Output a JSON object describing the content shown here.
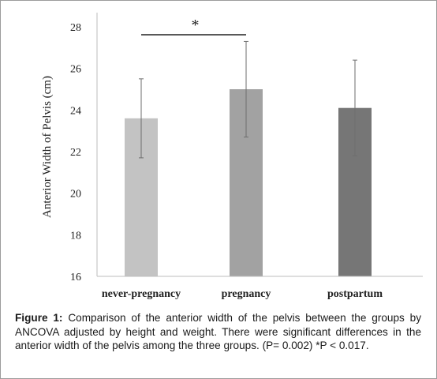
{
  "chart_data": {
    "type": "bar",
    "categories": [
      "never-pregnancy",
      "pregnancy",
      "postpartum"
    ],
    "values": [
      23.6,
      25.0,
      24.1
    ],
    "error_upper": [
      25.5,
      27.3,
      26.4
    ],
    "error_lower": [
      21.7,
      22.7,
      21.8
    ],
    "bar_colors": [
      "#c3c3c3",
      "#a2a2a2",
      "#767676"
    ],
    "ylabel": "Anterior Width of Pelvis (cm)",
    "xlabel": "",
    "ylim": [
      16,
      28
    ],
    "yticks": [
      16,
      18,
      20,
      22,
      24,
      26,
      28
    ],
    "grid": false,
    "significance": {
      "between": [
        0,
        1
      ],
      "label": "*"
    }
  },
  "caption": {
    "label": "Figure 1:",
    "text": "Comparison of the anterior width of the pelvis between the groups by ANCOVA adjusted by height and weight. There were significant differences in the anterior width of the pelvis among the three groups. (P= 0.002) *P < 0.017."
  }
}
